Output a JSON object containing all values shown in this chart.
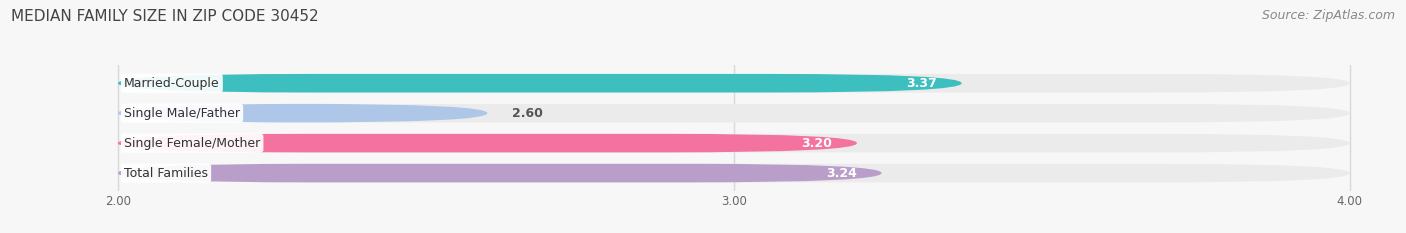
{
  "title": "MEDIAN FAMILY SIZE IN ZIP CODE 30452",
  "source": "Source: ZipAtlas.com",
  "categories": [
    "Married-Couple",
    "Single Male/Father",
    "Single Female/Mother",
    "Total Families"
  ],
  "values": [
    3.37,
    2.6,
    3.2,
    3.24
  ],
  "bar_colors": [
    "#3dbfbf",
    "#aec6e8",
    "#f472a0",
    "#b89ec8"
  ],
  "bar_bg_color": "#ebebeb",
  "xlim_min": 1.82,
  "xlim_max": 4.08,
  "xstart": 2.0,
  "xend": 4.0,
  "xticks": [
    2.0,
    3.0,
    4.0
  ],
  "xtick_labels": [
    "2.00",
    "3.00",
    "4.00"
  ],
  "bar_height": 0.62,
  "bar_gap": 1.0,
  "title_fontsize": 11,
  "label_fontsize": 9,
  "value_fontsize": 9,
  "source_fontsize": 9,
  "bg_color": "#f7f7f7",
  "plot_bg_color": "#f7f7f7",
  "grid_color": "#d8d8d8",
  "value_color_inside": "#ffffff",
  "value_color_outside": "#555555",
  "label_box_color": "#ffffff",
  "label_text_color": "#333333"
}
